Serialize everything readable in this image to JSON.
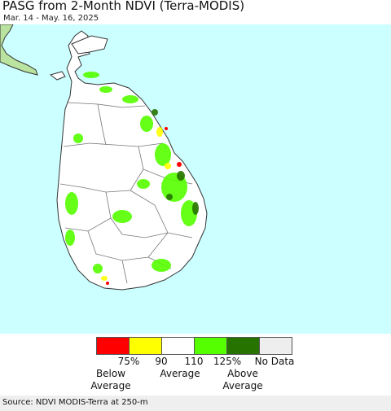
{
  "title": "PASG from 2-Month NDVI (Terra-MODIS)",
  "date_range": "Mar. 14 - May. 16, 2025",
  "colors": {
    "ocean": "#ccffff",
    "land": "#ffffff",
    "boundary": "#555555",
    "mainland": "#cfe8c2"
  },
  "legend": {
    "swatches": [
      {
        "color": "#ff0000",
        "meaning": "below 75%"
      },
      {
        "color": "#ffff00",
        "meaning": "75% to 90%"
      },
      {
        "color": "#ffffff",
        "meaning": "90% to 110%"
      },
      {
        "color": "#55ff00",
        "meaning": "110% to 125%"
      },
      {
        "color": "#267300",
        "meaning": "above 125%"
      },
      {
        "color": "#eeeeee",
        "meaning": "No Data"
      }
    ],
    "ticks": [
      "75%",
      "90",
      "110",
      "125%",
      "No Data"
    ],
    "below_line1": "Below",
    "below_line2": "Average",
    "average": "Average",
    "above_line1": "Above",
    "above_line2": "Average"
  },
  "source": "Source: NDVI MODIS-Terra at 250-m"
}
